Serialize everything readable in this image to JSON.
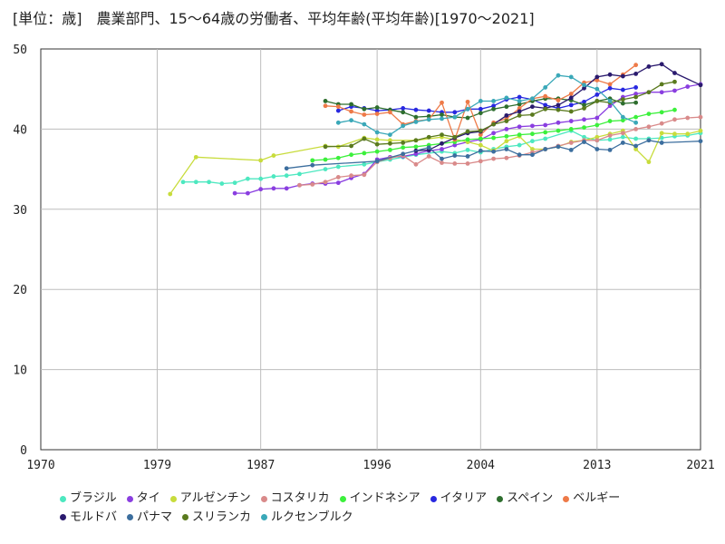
{
  "chart_data": {
    "type": "line",
    "title": "[単位：歳]　農業部門、15～64歳の労働者、平均年齢(平均年齢)[1970～2021]",
    "xlabel": "",
    "ylabel": "",
    "xlim": [
      1970,
      2021
    ],
    "ylim": [
      0,
      50
    ],
    "x_ticks": [
      "1970",
      "1979",
      "1987",
      "1996",
      "2004",
      "2013",
      "2021"
    ],
    "y_ticks": [
      "0",
      "10",
      "20",
      "30",
      "40",
      "50"
    ],
    "grid": true,
    "legend_position": "bottom",
    "series": [
      {
        "name": "ブラジル",
        "color": "#4de8c0",
        "x": [
          1981,
          1982,
          1983,
          1984,
          1985,
          1986,
          1987,
          1988,
          1989,
          1990,
          1992,
          1993,
          1995,
          1996,
          1997,
          1998,
          1999,
          2001,
          2002,
          2003,
          2004,
          2005,
          2006,
          2007,
          2008,
          2009,
          2011,
          2012,
          2013,
          2014,
          2015,
          2016,
          2017,
          2018,
          2019,
          2020,
          2021
        ],
        "y": [
          33.4,
          33.4,
          33.4,
          33.2,
          33.3,
          33.8,
          33.8,
          34.1,
          34.2,
          34.4,
          35.0,
          35.3,
          35.6,
          35.9,
          36.2,
          36.5,
          36.8,
          37.2,
          37.0,
          37.4,
          37.1,
          37.5,
          37.8,
          38.0,
          38.5,
          38.8,
          39.8,
          39.0,
          38.6,
          38.7,
          39.0,
          38.8,
          38.8,
          38.9,
          39.1,
          39.2,
          39.5
        ]
      },
      {
        "name": "タイ",
        "color": "#8a3ee0",
        "x": [
          1985,
          1986,
          1987,
          1988,
          1989,
          1990,
          1991,
          1992,
          1993,
          1994,
          1995,
          1996,
          1997,
          1998,
          1999,
          2000,
          2001,
          2002,
          2003,
          2004,
          2005,
          2006,
          2007,
          2008,
          2009,
          2010,
          2011,
          2012,
          2013,
          2014,
          2015,
          2016,
          2017,
          2018,
          2019,
          2020,
          2021
        ],
        "y": [
          32.0,
          32.0,
          32.5,
          32.6,
          32.6,
          33.0,
          33.2,
          33.2,
          33.3,
          33.9,
          34.4,
          36.2,
          36.5,
          36.6,
          36.9,
          37.3,
          37.5,
          38.0,
          38.4,
          38.7,
          39.5,
          40.0,
          40.3,
          40.4,
          40.5,
          40.8,
          41.0,
          41.2,
          41.4,
          42.9,
          44.0,
          44.4,
          44.6,
          44.6,
          44.8,
          45.3,
          45.6
        ]
      },
      {
        "name": "アルゼンチン",
        "color": "#c8dc3c",
        "x": [
          1980,
          1982,
          1987,
          1988,
          1992,
          1993,
          1995,
          1996,
          1997,
          1999,
          2001,
          2003,
          2004,
          2005,
          2006,
          2007,
          2008,
          2009,
          2010,
          2011,
          2012,
          2013,
          2014,
          2015,
          2016,
          2017,
          2018,
          2019,
          2020,
          2021
        ],
        "y": [
          31.9,
          36.5,
          36.1,
          36.7,
          37.9,
          37.8,
          38.9,
          38.7,
          38.6,
          38.6,
          39.0,
          38.4,
          38.0,
          37.3,
          38.5,
          39.1,
          37.5,
          37.5,
          37.8,
          38.4,
          38.6,
          39.0,
          39.4,
          39.8,
          37.5,
          35.9,
          39.5,
          39.4,
          39.4,
          39.8
        ]
      },
      {
        "name": "コスタリカ",
        "color": "#d98a8a",
        "x": [
          1990,
          1991,
          1992,
          1993,
          1994,
          1995,
          1996,
          1997,
          1998,
          1999,
          2000,
          2001,
          2002,
          2003,
          2004,
          2005,
          2006,
          2007,
          2008,
          2009,
          2010,
          2011,
          2012,
          2013,
          2014,
          2015,
          2016,
          2017,
          2018,
          2019,
          2020,
          2021
        ],
        "y": [
          33.0,
          33.1,
          33.4,
          34.0,
          34.2,
          34.3,
          35.9,
          36.4,
          36.7,
          35.6,
          36.6,
          35.8,
          35.7,
          35.7,
          36.0,
          36.3,
          36.4,
          36.7,
          37.1,
          37.5,
          37.9,
          38.3,
          38.6,
          38.6,
          39.2,
          39.5,
          40.0,
          40.3,
          40.7,
          41.2,
          41.4,
          41.5
        ]
      },
      {
        "name": "インドネシア",
        "color": "#3cf03c",
        "x": [
          1991,
          1992,
          1993,
          1994,
          1995,
          1996,
          1997,
          1998,
          1999,
          2000,
          2001,
          2002,
          2003,
          2004,
          2005,
          2006,
          2007,
          2008,
          2009,
          2010,
          2011,
          2012,
          2013,
          2014,
          2015,
          2016,
          2017,
          2018,
          2019
        ],
        "y": [
          36.1,
          36.2,
          36.4,
          36.8,
          37.0,
          37.2,
          37.4,
          37.7,
          37.8,
          38.0,
          38.2,
          38.4,
          38.7,
          38.8,
          38.9,
          39.1,
          39.3,
          39.4,
          39.6,
          39.8,
          40.0,
          40.2,
          40.5,
          41.0,
          41.1,
          41.5,
          41.9,
          42.1,
          42.4
        ]
      },
      {
        "name": "イタリア",
        "color": "#2828e0",
        "x": [
          1993,
          1994,
          1995,
          1996,
          1997,
          1998,
          1999,
          2000,
          2001,
          2002,
          2003,
          2004,
          2005,
          2006,
          2007,
          2008,
          2009,
          2010,
          2011,
          2012,
          2013,
          2014,
          2015,
          2016
        ],
        "y": [
          42.3,
          42.8,
          42.6,
          42.3,
          42.4,
          42.6,
          42.4,
          42.3,
          42.1,
          42.1,
          42.5,
          42.5,
          42.9,
          43.7,
          44.0,
          43.7,
          43.0,
          42.6,
          43.0,
          43.4,
          44.3,
          45.1,
          44.9,
          45.2
        ]
      },
      {
        "name": "スペイン",
        "color": "#2e6e2e",
        "x": [
          1992,
          1993,
          1994,
          1995,
          1996,
          1997,
          1998,
          1999,
          2000,
          2001,
          2002,
          2003,
          2004,
          2005,
          2006,
          2007,
          2008,
          2009,
          2010,
          2011,
          2012,
          2013,
          2014,
          2015,
          2016
        ],
        "y": [
          43.5,
          43.1,
          43.1,
          42.5,
          42.7,
          42.4,
          42.1,
          41.5,
          41.6,
          41.8,
          41.5,
          41.4,
          42.0,
          42.5,
          42.8,
          43.1,
          43.5,
          43.8,
          43.8,
          43.6,
          43.0,
          43.5,
          43.8,
          43.2,
          43.3
        ]
      },
      {
        "name": "ベルギー",
        "color": "#ee7a48",
        "x": [
          1992,
          1993,
          1994,
          1995,
          1996,
          1997,
          1998,
          1999,
          2000,
          2001,
          2002,
          2003,
          2004,
          2005,
          2006,
          2007,
          2008,
          2009,
          2010,
          2011,
          2012,
          2013,
          2014,
          2015,
          2016
        ],
        "y": [
          42.9,
          42.8,
          42.2,
          41.8,
          41.9,
          42.1,
          40.6,
          41.0,
          41.2,
          43.3,
          38.7,
          43.4,
          39.3,
          40.8,
          41.3,
          42.6,
          43.8,
          44.1,
          43.6,
          44.4,
          45.8,
          46.1,
          45.6,
          46.8,
          48.0
        ]
      },
      {
        "name": "モルドバ",
        "color": "#2a1a6e",
        "x": [
          1999,
          2000,
          2001,
          2002,
          2003,
          2004,
          2005,
          2006,
          2007,
          2008,
          2009,
          2010,
          2011,
          2012,
          2013,
          2014,
          2015,
          2016,
          2017,
          2018,
          2019,
          2021
        ],
        "y": [
          37.3,
          37.4,
          38.2,
          38.9,
          39.5,
          39.7,
          40.6,
          41.7,
          42.2,
          42.8,
          42.6,
          43.0,
          43.9,
          45.1,
          46.5,
          46.8,
          46.6,
          46.9,
          47.8,
          48.1,
          47.0,
          45.5
        ]
      },
      {
        "name": "パナマ",
        "color": "#3c6e9e",
        "x": [
          1989,
          1991,
          1996,
          1998,
          2000,
          2001,
          2002,
          2003,
          2004,
          2005,
          2006,
          2007,
          2008,
          2009,
          2010,
          2011,
          2012,
          2013,
          2014,
          2015,
          2016,
          2017,
          2018,
          2021
        ],
        "y": [
          35.1,
          35.5,
          36.0,
          36.9,
          37.7,
          36.3,
          36.7,
          36.6,
          37.3,
          37.2,
          37.5,
          36.8,
          36.8,
          37.5,
          37.8,
          37.4,
          38.4,
          37.5,
          37.4,
          38.3,
          37.9,
          38.6,
          38.3,
          38.5
        ]
      },
      {
        "name": "スリランカ",
        "color": "#5a7a1e",
        "x": [
          1992,
          1994,
          1995,
          1996,
          1997,
          1998,
          1999,
          2000,
          2001,
          2002,
          2003,
          2004,
          2005,
          2006,
          2007,
          2008,
          2009,
          2010,
          2011,
          2012,
          2013,
          2014,
          2015,
          2016,
          2017,
          2018,
          2019
        ],
        "y": [
          37.8,
          37.9,
          38.8,
          38.1,
          38.2,
          38.3,
          38.6,
          39.0,
          39.3,
          39.0,
          39.7,
          39.8,
          40.6,
          41.0,
          41.7,
          41.8,
          42.5,
          42.4,
          42.2,
          42.6,
          43.5,
          43.3,
          43.7,
          44.0,
          44.6,
          45.6,
          45.9
        ]
      },
      {
        "name": "ルクセンブルク",
        "color": "#3aa8b8",
        "x": [
          1993,
          1994,
          1995,
          1996,
          1997,
          1998,
          1999,
          2000,
          2001,
          2002,
          2003,
          2004,
          2005,
          2006,
          2007,
          2008,
          2009,
          2010,
          2011,
          2012,
          2013,
          2014,
          2015,
          2016
        ],
        "y": [
          40.8,
          41.1,
          40.6,
          39.6,
          39.3,
          40.4,
          40.9,
          41.2,
          41.3,
          41.5,
          42.5,
          43.5,
          43.5,
          43.9,
          43.5,
          43.8,
          45.2,
          46.7,
          46.5,
          45.5,
          45.0,
          43.5,
          41.5,
          40.8
        ]
      }
    ]
  }
}
